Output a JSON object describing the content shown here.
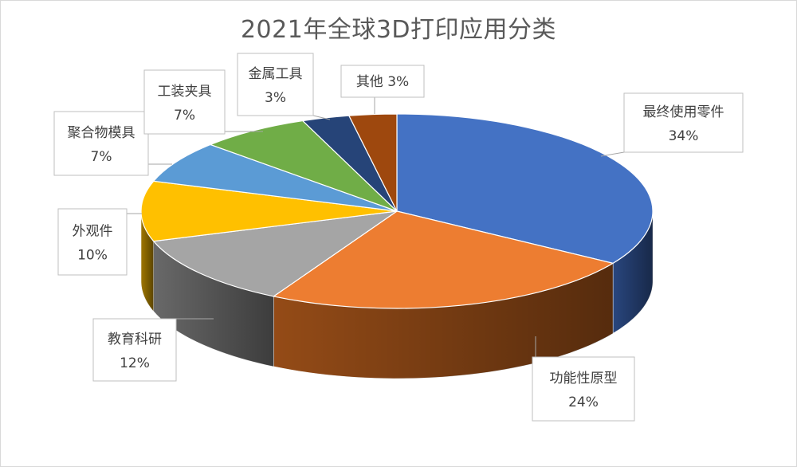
{
  "chart_data": {
    "type": "pie",
    "title": "2021年全球3D打印应用分类",
    "slices": [
      {
        "label": "最终使用零件",
        "value": 34,
        "value_label": "34%",
        "color": "#4472C4",
        "side": "#2B4A85"
      },
      {
        "label": "功能性原型",
        "value": 24,
        "value_label": "24%",
        "color": "#ED7D31",
        "side": "#9C4F18"
      },
      {
        "label": "教育科研",
        "value": 12,
        "value_label": "12%",
        "color": "#A5A5A5",
        "side": "#6E6E6E"
      },
      {
        "label": "外观件",
        "value": 10,
        "value_label": "10%",
        "color": "#FFC000",
        "side": "#A77D00"
      },
      {
        "label": "聚合物模具",
        "value": 7,
        "value_label": "7%",
        "color": "#5B9BD5",
        "side": "#3A6A96"
      },
      {
        "label": "工装夹具",
        "value": 7,
        "value_label": "7%",
        "color": "#70AD47",
        "side": "#4A7A2C"
      },
      {
        "label": "金属工具",
        "value": 3,
        "value_label": "3%",
        "color": "#264478",
        "side": "#172B4D"
      },
      {
        "label": "其他",
        "value": 3,
        "value_label": "3%",
        "color": "#9E480E",
        "side": "#6A2F08"
      }
    ],
    "legend": "none"
  }
}
